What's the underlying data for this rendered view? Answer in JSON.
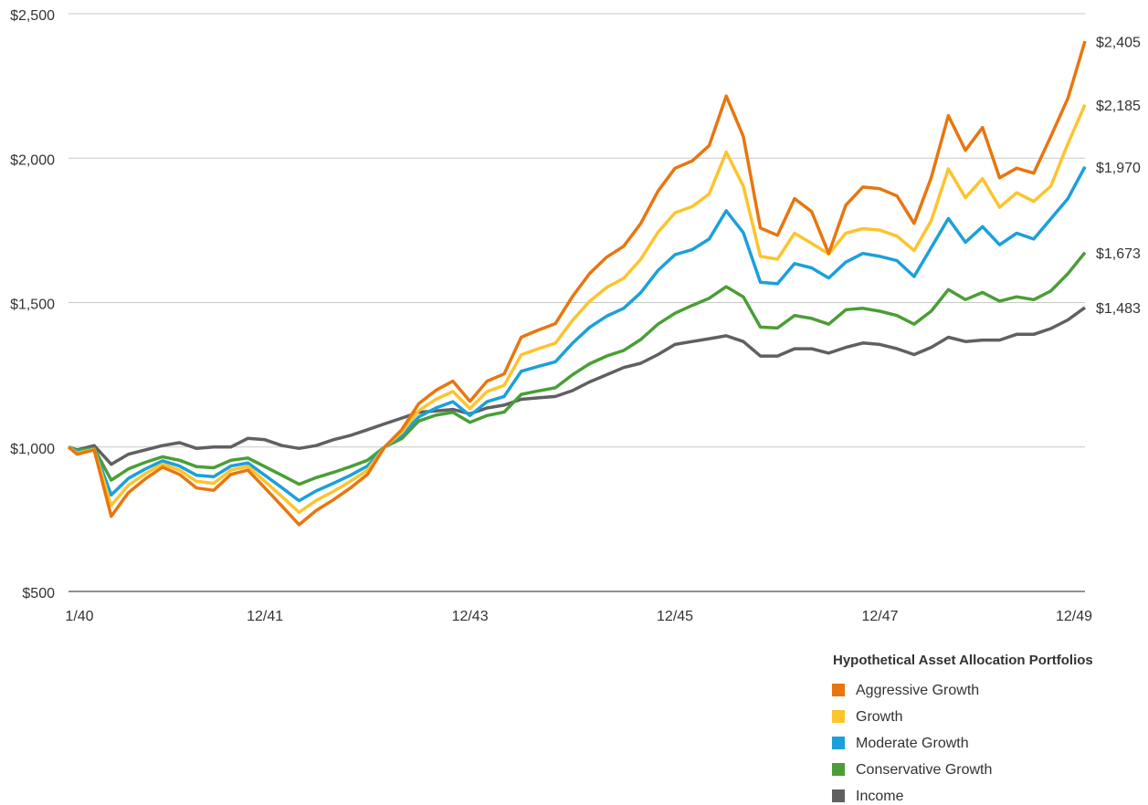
{
  "chart_data": {
    "type": "line",
    "categories": [
      "1/40",
      null,
      null,
      null,
      null,
      null,
      null,
      null,
      null,
      null,
      null,
      null,
      "12/41",
      null,
      null,
      null,
      null,
      null,
      null,
      null,
      null,
      null,
      null,
      null,
      "12/43",
      null,
      null,
      null,
      null,
      null,
      null,
      null,
      null,
      null,
      null,
      null,
      "12/45",
      null,
      null,
      null,
      null,
      null,
      null,
      null,
      null,
      null,
      null,
      null,
      "12/47",
      null,
      null,
      null,
      null,
      null,
      null,
      null,
      null,
      null,
      null,
      null,
      "12/49"
    ],
    "series": [
      {
        "name": "Aggressive Growth",
        "color": "#e8760f",
        "values": [
          1000,
          975,
          990,
          760,
          842,
          890,
          930,
          905,
          858,
          850,
          905,
          920,
          858,
          795,
          731,
          780,
          817,
          858,
          905,
          1000,
          1060,
          1150,
          1196,
          1228,
          1158,
          1228,
          1253,
          1380,
          1405,
          1427,
          1521,
          1600,
          1657,
          1695,
          1774,
          1885,
          1965,
          1990,
          2043,
          2215,
          2075,
          1758,
          1733,
          1860,
          1815,
          1670,
          1837,
          1900,
          1894,
          1869,
          1774,
          1932,
          2147,
          2027,
          2106,
          1932,
          1965,
          1948,
          2075,
          2207,
          2405
        ],
        "value_labels": [
          null,
          null,
          null,
          null,
          null,
          null,
          null,
          null,
          null,
          null,
          null,
          null,
          null,
          null,
          null,
          null,
          null,
          null,
          null,
          null,
          null,
          null,
          null,
          null,
          null,
          null,
          null,
          null,
          null,
          null,
          null,
          null,
          null,
          null,
          null,
          null,
          null,
          null,
          null,
          null,
          null,
          null,
          null,
          null,
          null,
          null,
          null,
          null,
          null,
          null,
          null,
          null,
          null,
          null,
          null,
          null,
          null,
          null,
          null,
          null,
          "$2,405"
        ]
      },
      {
        "name": "Growth",
        "color": "#fcc42d",
        "values": [
          1000,
          979,
          992,
          798,
          867,
          908,
          941,
          920,
          881,
          874,
          920,
          933,
          881,
          828,
          774,
          815,
          846,
          881,
          920,
          1000,
          1050,
          1126,
          1165,
          1192,
          1133,
          1192,
          1213,
          1319,
          1340,
          1359,
          1438,
          1504,
          1552,
          1584,
          1650,
          1743,
          1811,
          1832,
          1876,
          2021,
          1903,
          1660,
          1650,
          1740,
          1705,
          1668,
          1740,
          1756,
          1751,
          1730,
          1680,
          1783,
          1963,
          1863,
          1929,
          1830,
          1880,
          1850,
          1903,
          2050,
          2185
        ],
        "value_labels": [
          null,
          null,
          null,
          null,
          null,
          null,
          null,
          null,
          null,
          null,
          null,
          null,
          null,
          null,
          null,
          null,
          null,
          null,
          null,
          null,
          null,
          null,
          null,
          null,
          null,
          null,
          null,
          null,
          null,
          null,
          null,
          null,
          null,
          null,
          null,
          null,
          null,
          null,
          null,
          null,
          null,
          null,
          null,
          null,
          null,
          null,
          null,
          null,
          null,
          null,
          null,
          null,
          null,
          null,
          null,
          null,
          null,
          null,
          null,
          null,
          "$2,185"
        ]
      },
      {
        "name": "Moderate Growth",
        "color": "#1ba0db",
        "values": [
          1000,
          983,
          993,
          834,
          891,
          924,
          952,
          934,
          902,
          897,
          934,
          945,
          902,
          859,
          814,
          848,
          874,
          902,
          934,
          1000,
          1041,
          1104,
          1135,
          1157,
          1109,
          1157,
          1175,
          1262,
          1279,
          1295,
          1359,
          1414,
          1453,
          1480,
          1534,
          1611,
          1666,
          1683,
          1720,
          1818,
          1742,
          1570,
          1565,
          1635,
          1620,
          1585,
          1640,
          1670,
          1660,
          1645,
          1590,
          1690,
          1791,
          1709,
          1763,
          1700,
          1740,
          1720,
          1790,
          1860,
          1970
        ],
        "value_labels": [
          null,
          null,
          null,
          null,
          null,
          null,
          null,
          null,
          null,
          null,
          null,
          null,
          null,
          null,
          null,
          null,
          null,
          null,
          null,
          null,
          null,
          null,
          null,
          null,
          null,
          null,
          null,
          null,
          null,
          null,
          null,
          null,
          null,
          null,
          null,
          null,
          null,
          null,
          null,
          null,
          null,
          null,
          null,
          null,
          null,
          null,
          null,
          null,
          null,
          null,
          null,
          null,
          null,
          null,
          null,
          null,
          null,
          null,
          null,
          null,
          "$1,970"
        ]
      },
      {
        "name": "Conservative Growth",
        "color": "#4a9e35",
        "values": [
          1000,
          988,
          995,
          885,
          924,
          947,
          966,
          954,
          932,
          928,
          954,
          962,
          932,
          902,
          871,
          894,
          912,
          932,
          954,
          1000,
          1029,
          1090,
          1110,
          1120,
          1085,
          1109,
          1121,
          1182,
          1194,
          1205,
          1250,
          1288,
          1315,
          1334,
          1372,
          1425,
          1463,
          1490,
          1515,
          1555,
          1520,
          1415,
          1412,
          1455,
          1445,
          1425,
          1475,
          1480,
          1470,
          1455,
          1425,
          1470,
          1545,
          1510,
          1535,
          1505,
          1520,
          1510,
          1540,
          1600,
          1673
        ],
        "value_labels": [
          null,
          null,
          null,
          null,
          null,
          null,
          null,
          null,
          null,
          null,
          null,
          null,
          null,
          null,
          null,
          null,
          null,
          null,
          null,
          null,
          null,
          null,
          null,
          null,
          null,
          null,
          null,
          null,
          null,
          null,
          null,
          null,
          null,
          null,
          null,
          null,
          null,
          null,
          null,
          null,
          null,
          null,
          null,
          null,
          null,
          null,
          null,
          null,
          null,
          null,
          null,
          null,
          null,
          null,
          null,
          null,
          null,
          null,
          null,
          null,
          "$1,673"
        ]
      },
      {
        "name": "Income",
        "color": "#606062",
        "values": [
          1000,
          990,
          1005,
          940,
          975,
          990,
          1005,
          1015,
          995,
          1000,
          1000,
          1030,
          1025,
          1005,
          995,
          1005,
          1025,
          1040,
          1060,
          1080,
          1100,
          1120,
          1125,
          1130,
          1115,
          1135,
          1145,
          1165,
          1170,
          1175,
          1195,
          1225,
          1250,
          1275,
          1290,
          1320,
          1355,
          1365,
          1375,
          1385,
          1365,
          1315,
          1315,
          1340,
          1340,
          1325,
          1345,
          1360,
          1355,
          1340,
          1320,
          1345,
          1380,
          1365,
          1370,
          1370,
          1390,
          1390,
          1410,
          1440,
          1483
        ],
        "value_labels": [
          null,
          null,
          null,
          null,
          null,
          null,
          null,
          null,
          null,
          null,
          null,
          null,
          null,
          null,
          null,
          null,
          null,
          null,
          null,
          null,
          null,
          null,
          null,
          null,
          null,
          null,
          null,
          null,
          null,
          null,
          null,
          null,
          null,
          null,
          null,
          null,
          null,
          null,
          null,
          null,
          null,
          null,
          null,
          null,
          null,
          null,
          null,
          null,
          null,
          null,
          null,
          null,
          null,
          null,
          null,
          null,
          null,
          null,
          null,
          null,
          "$1,483"
        ]
      }
    ],
    "ylim": [
      500,
      2500
    ],
    "yticks": [
      {
        "value": 500,
        "label": "$500"
      },
      {
        "value": 1000,
        "label": "$1,000"
      },
      {
        "value": 1500,
        "label": "$1,500"
      },
      {
        "value": 2000,
        "label": "$2,000"
      },
      {
        "value": 2500,
        "label": "$2,500"
      }
    ],
    "grid": true,
    "legend": {
      "title": "Hypothetical Asset Allocation Portfolios",
      "position": "bottom-right"
    }
  }
}
